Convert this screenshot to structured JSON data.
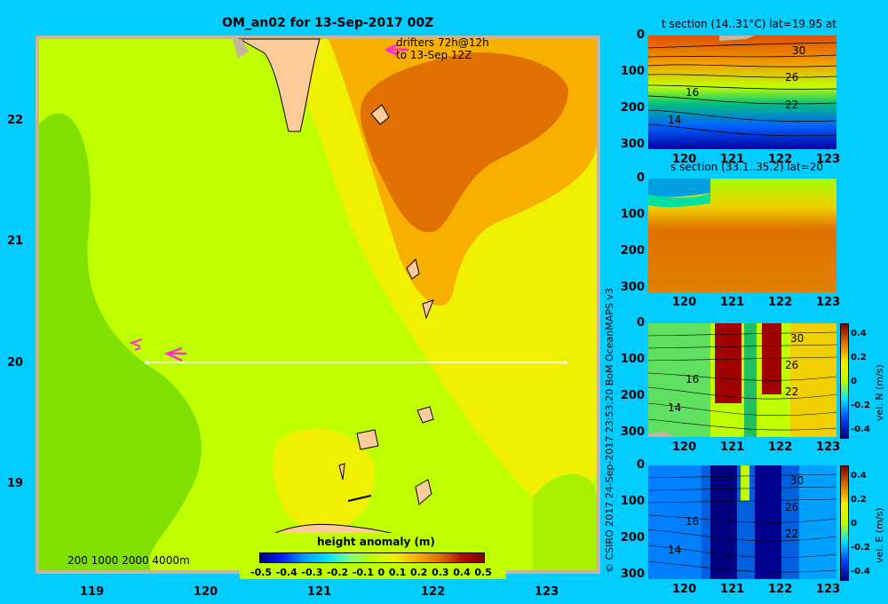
{
  "main": {
    "title": "OM_an02 for 13-Sep-2017 00Z",
    "drifter_note_1": "drifters 72h@12h",
    "drifter_note_2": "to 13-Sep 12Z",
    "depth_legend": "200  1000  2000  4000m",
    "x_ticks": [
      "119",
      "120",
      "121",
      "122",
      "123"
    ],
    "y_ticks": [
      "22",
      "21",
      "20",
      "19"
    ],
    "colorbar_title": "height anomaly  (m)",
    "colorbar_ticks": [
      "-0.5",
      "-0.4",
      "-0.3",
      "-0.2",
      "-0.1",
      "0",
      "0.1",
      "0.2",
      "0.3",
      "0.4",
      "0.5"
    ],
    "section_line": {
      "lat": 20.0,
      "lon_start": 119.5,
      "lon_end": 123.2
    }
  },
  "credit": "© CSIRO 2017   24-Sep-2017 23:53:20 BoM OceanMAPS v3",
  "panels": [
    {
      "title": "t section (14..31°C) lat=19.95 at",
      "y_ticks": [
        "0",
        "100",
        "200",
        "300"
      ],
      "x_ticks": [
        "120",
        "121",
        "122",
        "123"
      ],
      "contour_labels": [
        "30",
        "26",
        "22",
        "16",
        "14"
      ]
    },
    {
      "title": "s section (33.1..35.2) lat=20",
      "y_ticks": [
        "0",
        "100",
        "200",
        "300"
      ],
      "x_ticks": [
        "120",
        "121",
        "122",
        "123"
      ]
    },
    {
      "title": "",
      "y_ticks": [
        "0",
        "100",
        "200",
        "300"
      ],
      "x_ticks": [
        "120",
        "121",
        "122",
        "123"
      ],
      "contour_labels": [
        "30",
        "26",
        "22",
        "16",
        "14"
      ],
      "cbar_label": "vel. N (m/s)",
      "cbar_ticks": [
        "0.4",
        "0.2",
        "0",
        "-0.2",
        "-0.4"
      ]
    },
    {
      "title": "",
      "y_ticks": [
        "0",
        "100",
        "200",
        "300"
      ],
      "x_ticks": [
        "120",
        "121",
        "122",
        "123"
      ],
      "contour_labels": [
        "30",
        "26",
        "22",
        "16",
        "14"
      ],
      "cbar_label": "vel. E (m/s)",
      "cbar_ticks": [
        "0.4",
        "0.2",
        "0",
        "-0.2",
        "-0.4"
      ]
    }
  ],
  "chart_data": {
    "type": "heatmap",
    "title": "OM_an02 for 13-Sep-2017 00Z",
    "variable": "height anomaly (m)",
    "xlim": [
      118.5,
      123.5
    ],
    "ylim": [
      18.3,
      22.7
    ],
    "color_scale": [
      -0.5,
      0.5
    ],
    "notes": "Filled contour map of sea surface height anomaly with a zonal section line at 20N from 119.5E to 123.2E; four vertical section panels (temperature, salinity, northward velocity, eastward velocity) at lat 20, depth 0-300 m, lon 119.5-123.2."
  }
}
